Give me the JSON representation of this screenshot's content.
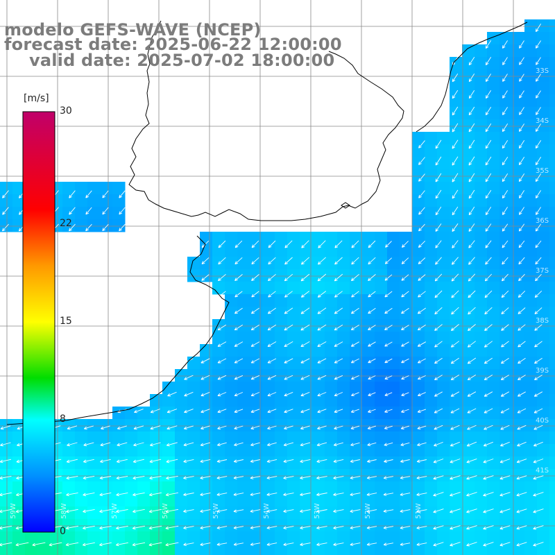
{
  "title": {
    "line1": "modelo GEFS-WAVE (NCEP)",
    "line2": "forecast date: 2025-06-22 12:00:00",
    "line3": "valid date: 2025-07-02 18:00:00"
  },
  "colorbar": {
    "unit": "[m/s]",
    "ticks": [
      {
        "value": 30,
        "label": "30"
      },
      {
        "value": 22,
        "label": "22"
      },
      {
        "value": 15,
        "label": "15"
      },
      {
        "value": 8,
        "label": "8"
      },
      {
        "value": 0,
        "label": "0"
      }
    ],
    "range": [
      0,
      30
    ],
    "stops": [
      {
        "value": 0,
        "color": "#0000ff"
      },
      {
        "value": 4,
        "color": "#0090ff"
      },
      {
        "value": 8,
        "color": "#00ffff"
      },
      {
        "value": 11,
        "color": "#00dd00"
      },
      {
        "value": 15,
        "color": "#ffff00"
      },
      {
        "value": 19,
        "color": "#ff9900"
      },
      {
        "value": 23,
        "color": "#ff0000"
      },
      {
        "value": 30,
        "color": "#c0006a"
      }
    ]
  },
  "lat_labels": [
    "33S",
    "34S",
    "35S",
    "36S",
    "37S",
    "38S",
    "39S",
    "40S",
    "41S"
  ],
  "lon_labels": [
    "59W",
    "58W",
    "57W",
    "56W",
    "55W",
    "54W",
    "53W",
    "52W",
    "51W"
  ],
  "map": {
    "land_color": "#ffffff",
    "coast_color": "#000000",
    "grid_color": "#888888",
    "arrow_color": "#ffffff"
  }
}
